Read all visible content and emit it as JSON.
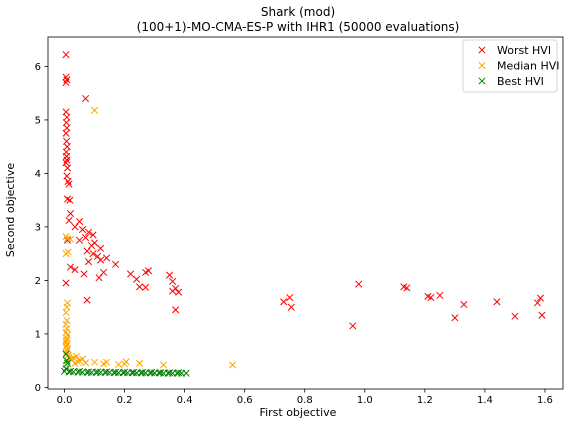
{
  "chart_data": {
    "type": "scatter",
    "title_line1": "Shark (mod)",
    "title_line2": "(100+1)-MO-CMA-ES-P with IHR1 (50000 evaluations)",
    "xlabel": "First objective",
    "ylabel": "Second objective",
    "xlim": [
      -0.055,
      1.66
    ],
    "ylim": [
      -0.03,
      6.55
    ],
    "x_ticks": [
      0.0,
      0.2,
      0.4,
      0.6,
      0.8,
      1.0,
      1.2,
      1.4,
      1.6
    ],
    "x_tick_labels": [
      "0.0",
      "0.2",
      "0.4",
      "0.6",
      "0.8",
      "1.0",
      "1.2",
      "1.4",
      "1.6"
    ],
    "y_ticks": [
      0,
      1,
      2,
      3,
      4,
      5,
      6
    ],
    "y_tick_labels": [
      "0",
      "1",
      "2",
      "3",
      "4",
      "5",
      "6"
    ],
    "grid": false,
    "legend_position": "top-right",
    "marker": "x",
    "series": [
      {
        "name": "Worst HVI",
        "color": "#ff0000",
        "points": [
          [
            0.005,
            6.22
          ],
          [
            0.005,
            5.8
          ],
          [
            0.008,
            5.75
          ],
          [
            0.005,
            5.7
          ],
          [
            0.07,
            5.4
          ],
          [
            0.005,
            5.15
          ],
          [
            0.008,
            5.05
          ],
          [
            0.006,
            4.95
          ],
          [
            0.008,
            4.85
          ],
          [
            0.005,
            4.75
          ],
          [
            0.007,
            4.6
          ],
          [
            0.009,
            4.5
          ],
          [
            0.006,
            4.4
          ],
          [
            0.007,
            4.32
          ],
          [
            0.008,
            4.25
          ],
          [
            0.005,
            4.2
          ],
          [
            0.01,
            4.1
          ],
          [
            0.008,
            3.95
          ],
          [
            0.012,
            3.85
          ],
          [
            0.015,
            3.8
          ],
          [
            0.01,
            3.52
          ],
          [
            0.018,
            3.5
          ],
          [
            0.02,
            3.25
          ],
          [
            0.015,
            3.12
          ],
          [
            0.05,
            3.1
          ],
          [
            0.035,
            3.0
          ],
          [
            0.06,
            2.95
          ],
          [
            0.08,
            2.9
          ],
          [
            0.095,
            2.85
          ],
          [
            0.07,
            2.8
          ],
          [
            0.01,
            2.75
          ],
          [
            0.05,
            2.75
          ],
          [
            0.1,
            2.7
          ],
          [
            0.09,
            2.65
          ],
          [
            0.12,
            2.6
          ],
          [
            0.075,
            2.55
          ],
          [
            0.095,
            2.5
          ],
          [
            0.11,
            2.45
          ],
          [
            0.14,
            2.42
          ],
          [
            0.12,
            2.38
          ],
          [
            0.08,
            2.35
          ],
          [
            0.17,
            2.3
          ],
          [
            0.02,
            2.25
          ],
          [
            0.035,
            2.2
          ],
          [
            0.13,
            2.15
          ],
          [
            0.22,
            2.12
          ],
          [
            0.065,
            2.12
          ],
          [
            0.27,
            2.15
          ],
          [
            0.28,
            2.18
          ],
          [
            0.115,
            2.05
          ],
          [
            0.24,
            2.02
          ],
          [
            0.005,
            1.95
          ],
          [
            0.25,
            1.88
          ],
          [
            0.27,
            1.87
          ],
          [
            0.35,
            2.1
          ],
          [
            0.36,
            1.98
          ],
          [
            0.37,
            1.85
          ],
          [
            0.36,
            1.8
          ],
          [
            0.38,
            1.78
          ],
          [
            0.075,
            1.63
          ],
          [
            0.37,
            1.45
          ],
          [
            0.73,
            1.6
          ],
          [
            0.75,
            1.68
          ],
          [
            0.755,
            1.5
          ],
          [
            0.96,
            1.15
          ],
          [
            0.98,
            1.93
          ],
          [
            1.13,
            1.88
          ],
          [
            1.14,
            1.86
          ],
          [
            1.21,
            1.7
          ],
          [
            1.22,
            1.68
          ],
          [
            1.25,
            1.72
          ],
          [
            1.3,
            1.3
          ],
          [
            1.33,
            1.55
          ],
          [
            1.44,
            1.6
          ],
          [
            1.5,
            1.33
          ],
          [
            1.575,
            1.58
          ],
          [
            1.585,
            1.67
          ],
          [
            1.59,
            1.35
          ]
        ]
      },
      {
        "name": "Median HVI",
        "color": "#ffa500",
        "points": [
          [
            0.1,
            5.18
          ],
          [
            0.005,
            2.82
          ],
          [
            0.01,
            2.78
          ],
          [
            0.02,
            2.77
          ],
          [
            0.012,
            2.53
          ],
          [
            0.005,
            2.5
          ],
          [
            0.01,
            1.58
          ],
          [
            0.008,
            1.5
          ],
          [
            0.005,
            1.4
          ],
          [
            0.008,
            1.25
          ],
          [
            0.005,
            1.18
          ],
          [
            0.008,
            1.1
          ],
          [
            0.005,
            1.03
          ],
          [
            0.01,
            0.98
          ],
          [
            0.008,
            0.92
          ],
          [
            0.006,
            0.88
          ],
          [
            0.005,
            0.84
          ],
          [
            0.008,
            0.8
          ],
          [
            0.006,
            0.76
          ],
          [
            0.01,
            0.72
          ],
          [
            0.008,
            0.68
          ],
          [
            0.006,
            0.64
          ],
          [
            0.012,
            0.6
          ],
          [
            0.015,
            0.56
          ],
          [
            0.02,
            0.53
          ],
          [
            0.01,
            0.5
          ],
          [
            0.03,
            0.55
          ],
          [
            0.025,
            0.52
          ],
          [
            0.04,
            0.58
          ],
          [
            0.05,
            0.5
          ],
          [
            0.045,
            0.47
          ],
          [
            0.06,
            0.53
          ],
          [
            0.07,
            0.46
          ],
          [
            0.035,
            0.45
          ],
          [
            0.1,
            0.47
          ],
          [
            0.13,
            0.44
          ],
          [
            0.14,
            0.47
          ],
          [
            0.18,
            0.43
          ],
          [
            0.2,
            0.44
          ],
          [
            0.205,
            0.48
          ],
          [
            0.25,
            0.45
          ],
          [
            0.33,
            0.42
          ],
          [
            0.56,
            0.42
          ],
          [
            0.005,
            0.42
          ]
        ]
      },
      {
        "name": "Best HVI",
        "color": "#008000",
        "points": [
          [
            0.005,
            0.62
          ],
          [
            0.007,
            0.5
          ],
          [
            0.01,
            0.45
          ],
          [
            0.005,
            0.35
          ],
          [
            0.0,
            0.3
          ],
          [
            0.015,
            0.29
          ],
          [
            0.03,
            0.29
          ],
          [
            0.045,
            0.285
          ],
          [
            0.06,
            0.285
          ],
          [
            0.075,
            0.28
          ],
          [
            0.09,
            0.28
          ],
          [
            0.105,
            0.28
          ],
          [
            0.12,
            0.28
          ],
          [
            0.135,
            0.28
          ],
          [
            0.15,
            0.28
          ],
          [
            0.165,
            0.275
          ],
          [
            0.18,
            0.275
          ],
          [
            0.195,
            0.275
          ],
          [
            0.21,
            0.275
          ],
          [
            0.225,
            0.275
          ],
          [
            0.24,
            0.27
          ],
          [
            0.255,
            0.27
          ],
          [
            0.27,
            0.27
          ],
          [
            0.285,
            0.27
          ],
          [
            0.3,
            0.27
          ],
          [
            0.315,
            0.27
          ],
          [
            0.33,
            0.265
          ],
          [
            0.345,
            0.265
          ],
          [
            0.36,
            0.265
          ],
          [
            0.375,
            0.265
          ],
          [
            0.39,
            0.265
          ],
          [
            0.405,
            0.265
          ],
          [
            0.02,
            0.3
          ],
          [
            0.05,
            0.3
          ],
          [
            0.08,
            0.29
          ],
          [
            0.11,
            0.29
          ],
          [
            0.14,
            0.29
          ],
          [
            0.17,
            0.285
          ],
          [
            0.2,
            0.285
          ],
          [
            0.23,
            0.28
          ],
          [
            0.26,
            0.28
          ],
          [
            0.29,
            0.28
          ],
          [
            0.32,
            0.275
          ],
          [
            0.35,
            0.275
          ],
          [
            0.38,
            0.275
          ]
        ]
      }
    ]
  }
}
